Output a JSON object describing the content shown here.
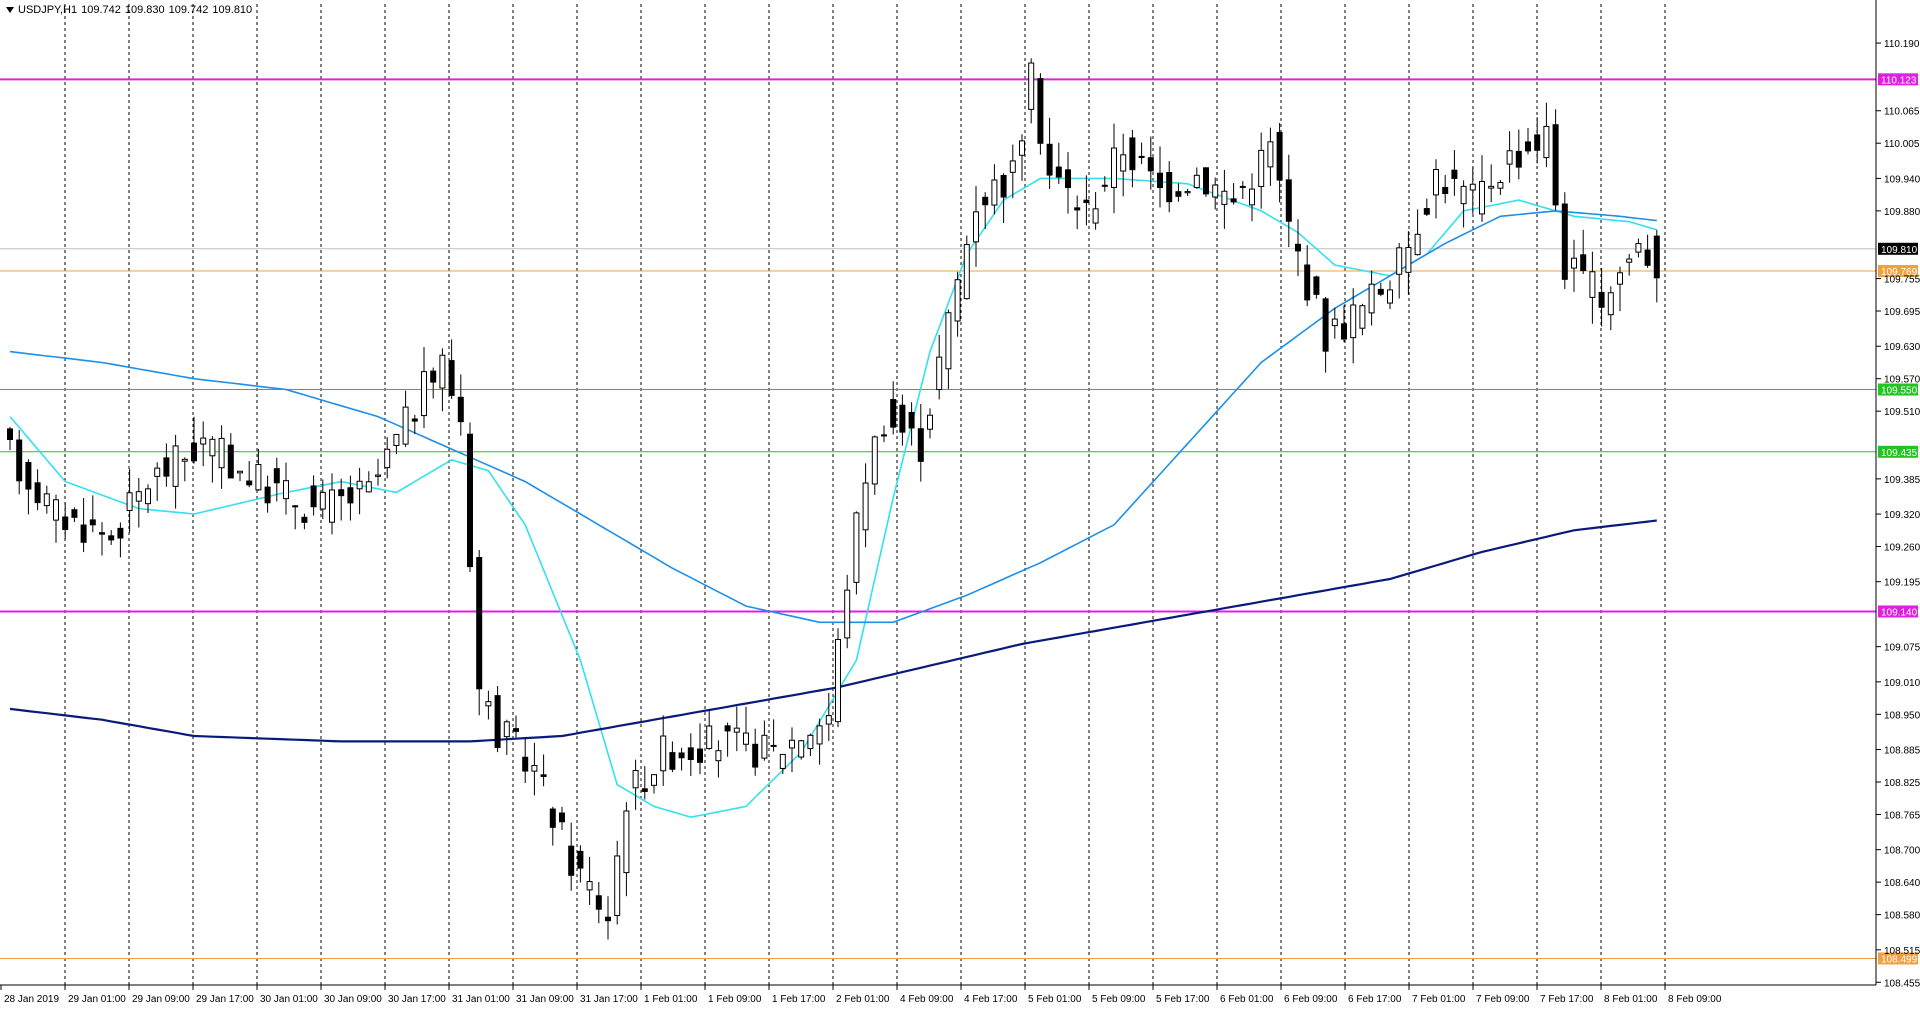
{
  "header": {
    "symbol": "USDJPY,H1",
    "open": "109.742",
    "high": "109.830",
    "low": "109.742",
    "close": "109.810"
  },
  "colors": {
    "background": "#ffffff",
    "grid": "#000000",
    "candle_up_fill": "#ffffff",
    "candle_down_fill": "#000000",
    "candle_outline": "#000000",
    "ma_fast": "#33e0f0",
    "ma_mid": "#1e8fe8",
    "ma_slow": "#0a1a7a",
    "level_magenta": "#e020e0",
    "level_green": "#22c422",
    "level_orange": "#f0a040",
    "bid_line": "#c0c0c0",
    "bid_tag": "#000000"
  },
  "chart_data": {
    "type": "candlestick",
    "y_range": [
      108.45,
      110.24
    ],
    "price_axis_ticks": [
      "110.190",
      "110.065",
      "110.005",
      "109.940",
      "109.880",
      "109.755",
      "109.695",
      "109.630",
      "109.570",
      "109.510",
      "109.385",
      "109.320",
      "109.260",
      "109.195",
      "109.075",
      "109.010",
      "108.950",
      "108.885",
      "108.825",
      "108.765",
      "108.700",
      "108.640",
      "108.580",
      "108.515",
      "108.455"
    ],
    "time_axis_labels": [
      "28 Jan 2019",
      "29 Jan 01:00",
      "29 Jan 09:00",
      "29 Jan 17:00",
      "30 Jan 01:00",
      "30 Jan 09:00",
      "30 Jan 17:00",
      "31 Jan 01:00",
      "31 Jan 09:00",
      "31 Jan 17:00",
      "1 Feb 01:00",
      "1 Feb 09:00",
      "1 Feb 17:00",
      "2 Feb 01:00",
      "4 Feb 09:00",
      "4 Feb 17:00",
      "5 Feb 01:00",
      "5 Feb 09:00",
      "5 Feb 17:00",
      "6 Feb 01:00",
      "6 Feb 09:00",
      "6 Feb 17:00",
      "7 Feb 01:00",
      "7 Feb 09:00",
      "7 Feb 17:00",
      "8 Feb 01:00",
      "8 Feb 09:00"
    ],
    "horizontal_levels": [
      {
        "label": "110.123",
        "value": 110.123,
        "color": "magenta"
      },
      {
        "label": "109.769",
        "value": 109.769,
        "color": "orange"
      },
      {
        "label": "109.550",
        "value": 109.55,
        "color": "green"
      },
      {
        "label": "109.435",
        "value": 109.435,
        "color": "green"
      },
      {
        "label": "109.140",
        "value": 109.14,
        "color": "magenta"
      },
      {
        "label": "108.499",
        "value": 108.499,
        "color": "orange"
      }
    ],
    "current_price": {
      "label": "109.810",
      "value": 109.81
    },
    "moving_averages": [
      {
        "role": "fast",
        "anchors": [
          [
            0,
            109.5
          ],
          [
            6,
            109.38
          ],
          [
            14,
            109.33
          ],
          [
            20,
            109.32
          ],
          [
            30,
            109.36
          ],
          [
            36,
            109.38
          ],
          [
            42,
            109.36
          ],
          [
            48,
            109.42
          ],
          [
            52,
            109.4
          ],
          [
            56,
            109.3
          ],
          [
            62,
            109.05
          ],
          [
            66,
            108.82
          ],
          [
            70,
            108.78
          ],
          [
            74,
            108.76
          ],
          [
            80,
            108.78
          ],
          [
            86,
            108.88
          ],
          [
            92,
            109.05
          ],
          [
            96,
            109.35
          ],
          [
            100,
            109.62
          ],
          [
            104,
            109.8
          ],
          [
            108,
            109.9
          ],
          [
            112,
            109.94
          ],
          [
            120,
            109.94
          ],
          [
            128,
            109.93
          ],
          [
            136,
            109.88
          ],
          [
            140,
            109.84
          ],
          [
            144,
            109.78
          ],
          [
            150,
            109.76
          ],
          [
            154,
            109.8
          ],
          [
            158,
            109.88
          ],
          [
            164,
            109.9
          ],
          [
            170,
            109.87
          ],
          [
            176,
            109.86
          ],
          [
            180,
            109.84
          ]
        ]
      },
      {
        "role": "mid",
        "anchors": [
          [
            0,
            109.62
          ],
          [
            10,
            109.6
          ],
          [
            20,
            109.57
          ],
          [
            30,
            109.55
          ],
          [
            40,
            109.5
          ],
          [
            48,
            109.44
          ],
          [
            56,
            109.38
          ],
          [
            64,
            109.3
          ],
          [
            72,
            109.22
          ],
          [
            80,
            109.15
          ],
          [
            88,
            109.12
          ],
          [
            96,
            109.12
          ],
          [
            104,
            109.17
          ],
          [
            112,
            109.23
          ],
          [
            120,
            109.3
          ],
          [
            128,
            109.45
          ],
          [
            136,
            109.6
          ],
          [
            144,
            109.7
          ],
          [
            150,
            109.76
          ],
          [
            156,
            109.82
          ],
          [
            162,
            109.87
          ],
          [
            168,
            109.88
          ],
          [
            175,
            109.87
          ],
          [
            180,
            109.86
          ]
        ]
      },
      {
        "role": "slow",
        "anchors": [
          [
            0,
            108.96
          ],
          [
            10,
            108.94
          ],
          [
            20,
            108.91
          ],
          [
            36,
            108.9
          ],
          [
            50,
            108.9
          ],
          [
            60,
            108.91
          ],
          [
            70,
            108.94
          ],
          [
            80,
            108.97
          ],
          [
            90,
            109.0
          ],
          [
            100,
            109.04
          ],
          [
            110,
            109.08
          ],
          [
            120,
            109.11
          ],
          [
            130,
            109.14
          ],
          [
            140,
            109.17
          ],
          [
            150,
            109.2
          ],
          [
            160,
            109.25
          ],
          [
            170,
            109.29
          ],
          [
            180,
            109.31
          ]
        ]
      }
    ]
  }
}
